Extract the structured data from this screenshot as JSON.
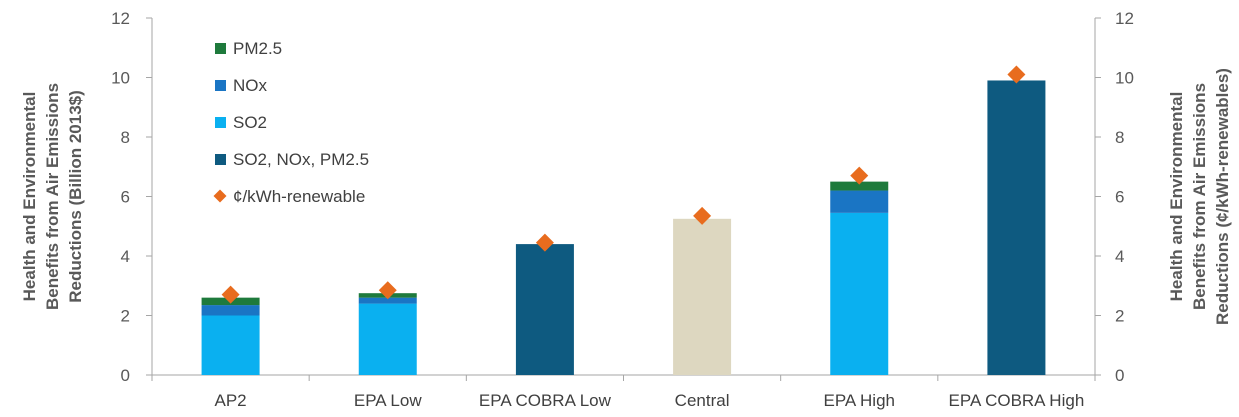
{
  "chart_data": {
    "type": "bar",
    "stacked": true,
    "categories": [
      "AP2",
      "EPA Low",
      "EPA COBRA Low",
      "Central",
      "EPA High",
      "EPA COBRA High"
    ],
    "series": [
      {
        "name": "SO2",
        "color": "#0ab0f0",
        "values": [
          2.0,
          2.4,
          0,
          0,
          5.45,
          0
        ]
      },
      {
        "name": "NOx",
        "color": "#1a75c4",
        "values": [
          0.35,
          0.2,
          0,
          0,
          0.75,
          0
        ]
      },
      {
        "name": "PM2.5",
        "color": "#1e7a3c",
        "values": [
          0.25,
          0.15,
          0,
          0,
          0.3,
          0
        ]
      },
      {
        "name": "SO2, NOx, PM2.5",
        "color": "#0e5a80",
        "values": [
          0,
          0,
          4.4,
          0,
          0,
          9.9
        ]
      },
      {
        "name": "",
        "color": "#ddd7c0",
        "values": [
          0,
          0,
          0,
          5.25,
          0,
          0
        ]
      }
    ],
    "secondary_series": {
      "name": "¢/kWh-renewable",
      "type": "scatter",
      "marker": "diamond",
      "color": "#e86c1e",
      "values": [
        2.7,
        2.85,
        4.45,
        5.35,
        6.7,
        10.1
      ]
    },
    "ylabel": "Health and Environmental Benefits from Air Emissions Reductions (Billion 2013$)",
    "y2label": "Health and Environmental Benefits from Air Emissions Reductions (¢/kWh-renewables)",
    "ylim": [
      0,
      12
    ],
    "y2lim": [
      0,
      12
    ],
    "yticks": [
      0,
      2,
      4,
      6,
      8,
      10,
      12
    ],
    "y2ticks": [
      0,
      2,
      4,
      6,
      8,
      10,
      12
    ],
    "ylabel_lines": [
      "Health and Environmental",
      "Benefits from Air Emissions",
      "Reductions (Billion 2013$)"
    ],
    "y2label_lines": [
      "Health and Environmental",
      "Benefits from Air Emissions",
      "Reductions (¢/kWh-renewables)"
    ],
    "legend": {
      "position": "top-left",
      "entries": [
        {
          "label": "PM2.5",
          "color": "#1e7a3c",
          "marker": "square"
        },
        {
          "label": "NOx",
          "color": "#1a75c4",
          "marker": "square"
        },
        {
          "label": "SO2",
          "color": "#0ab0f0",
          "marker": "square"
        },
        {
          "label": "SO2, NOx, PM2.5",
          "color": "#0e5a80",
          "marker": "square"
        },
        {
          "label": "¢/kWh-renewable",
          "color": "#e86c1e",
          "marker": "diamond"
        }
      ]
    },
    "grid": false
  }
}
